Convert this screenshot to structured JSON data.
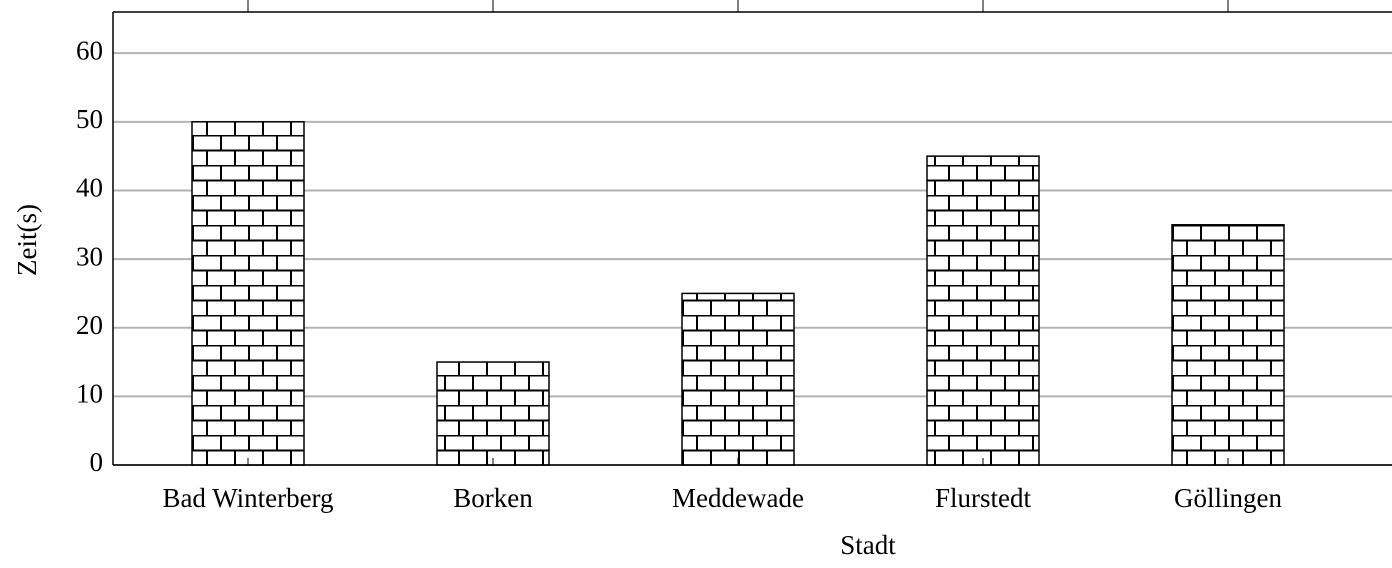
{
  "chart_data": {
    "type": "bar",
    "x_label": "Stadt",
    "y_label": "Zeit(s)",
    "categories": [
      "Bad Winterberg",
      "Borken",
      "Meddewade",
      "Flurstedt",
      "Göllingen"
    ],
    "values": [
      50,
      15,
      25,
      45,
      35
    ],
    "ylim": [
      0,
      66
    ],
    "yticks": [
      0,
      10,
      20,
      30,
      40,
      50,
      60
    ],
    "grid": true,
    "color": "#000000"
  }
}
